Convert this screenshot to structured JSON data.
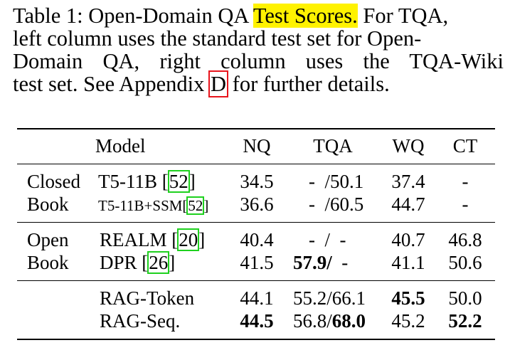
{
  "caption": {
    "prefix": "Table 1: Open-Domain QA ",
    "highlight": "Test Scores.",
    "line1_rest": " For TQA,",
    "line2": "left column uses the standard test set for Open-",
    "line3": "Domain QA, right column uses the TQA-Wiki",
    "line4_pre": "test set. See Appendix ",
    "appendix_ref": "D",
    "line4_post": " for further details."
  },
  "table": {
    "headers": {
      "model": "Model",
      "nq": "NQ",
      "tqa": "TQA",
      "wq": "WQ",
      "ct": "CT"
    },
    "closed_book": {
      "label_line1": "Closed",
      "label_line2": "Book",
      "rows": [
        {
          "model": "T5-11B [",
          "ref": "52",
          "model_close": "]",
          "nq": "34.5",
          "tqa_left": "-",
          "tqa_sep": "/",
          "tqa_right": "50.1",
          "wq": "37.4",
          "ct": "-"
        },
        {
          "model": "T5-11B+SSM[",
          "ref": "52",
          "model_close": "]",
          "nq": "36.6",
          "tqa_left": "-",
          "tqa_sep": "/",
          "tqa_right": "60.5",
          "wq": "44.7",
          "ct": "-"
        }
      ]
    },
    "open_book": {
      "label_line1": "Open",
      "label_line2": "Book",
      "rows": [
        {
          "model": "REALM [",
          "ref": "20",
          "model_close": "]",
          "nq": "40.4",
          "tqa_left": "-",
          "tqa_sep": "/",
          "tqa_right": "-",
          "wq": "40.7",
          "ct": "46.8"
        },
        {
          "model": "DPR [",
          "ref": "26",
          "model_close": "]",
          "nq": "41.5",
          "tqa_left": "57.9",
          "tqa_sep": "/",
          "tqa_right": "-",
          "wq": "41.1",
          "ct": "50.6"
        }
      ]
    },
    "rag": {
      "rows": [
        {
          "model": "RAG-Token",
          "nq": "44.1",
          "tqa_left": "55.2",
          "tqa_sep": "/",
          "tqa_right": "66.1",
          "wq": "45.5",
          "ct": "50.0"
        },
        {
          "model": "RAG-Seq.",
          "nq": "44.5",
          "tqa_left": "56.8",
          "tqa_sep": "/",
          "tqa_right": "68.0",
          "wq": "45.2",
          "ct": "52.2"
        }
      ]
    }
  },
  "colors": {
    "highlight": "#fff200",
    "appendix_box": "#e8141c",
    "citation_box": "#1fd11f"
  }
}
